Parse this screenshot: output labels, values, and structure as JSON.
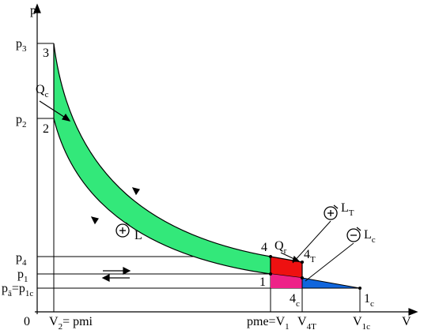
{
  "axes": {
    "y": "p",
    "x": "V",
    "origin": "0"
  },
  "pressure_labels": [
    {
      "main": "p",
      "sub": "3"
    },
    {
      "main": "p",
      "sub": "2"
    },
    {
      "main": "p",
      "sub": "4"
    },
    {
      "main": "p",
      "sub": "1"
    },
    {
      "main": "p",
      "sub": "ā",
      "main2": "=p",
      "sub2": "1c"
    }
  ],
  "volume_labels": [
    {
      "main": "V",
      "sub": "2",
      "main2": "= pmi"
    },
    {
      "main": "pme=V",
      "sub": "1"
    },
    {
      "main": "V",
      "sub": "4T"
    },
    {
      "main": "V",
      "sub": "1c"
    }
  ],
  "points": [
    {
      "main": "3"
    },
    {
      "main": "2"
    },
    {
      "main": "4"
    },
    {
      "main": "1"
    },
    {
      "main": "4",
      "sub": "T"
    },
    {
      "main": "4",
      "sub": "c"
    },
    {
      "main": "1",
      "sub": "c"
    }
  ],
  "annotations": {
    "heat_in": {
      "main": "Q",
      "sub": "c"
    },
    "heat_out": {
      "main": "Q",
      "sub": "r"
    },
    "work": {
      "main": "L"
    },
    "work_turbine": {
      "main": "L",
      "sub": "T"
    },
    "work_compressor": {
      "main": "L",
      "sub": "c"
    }
  }
}
